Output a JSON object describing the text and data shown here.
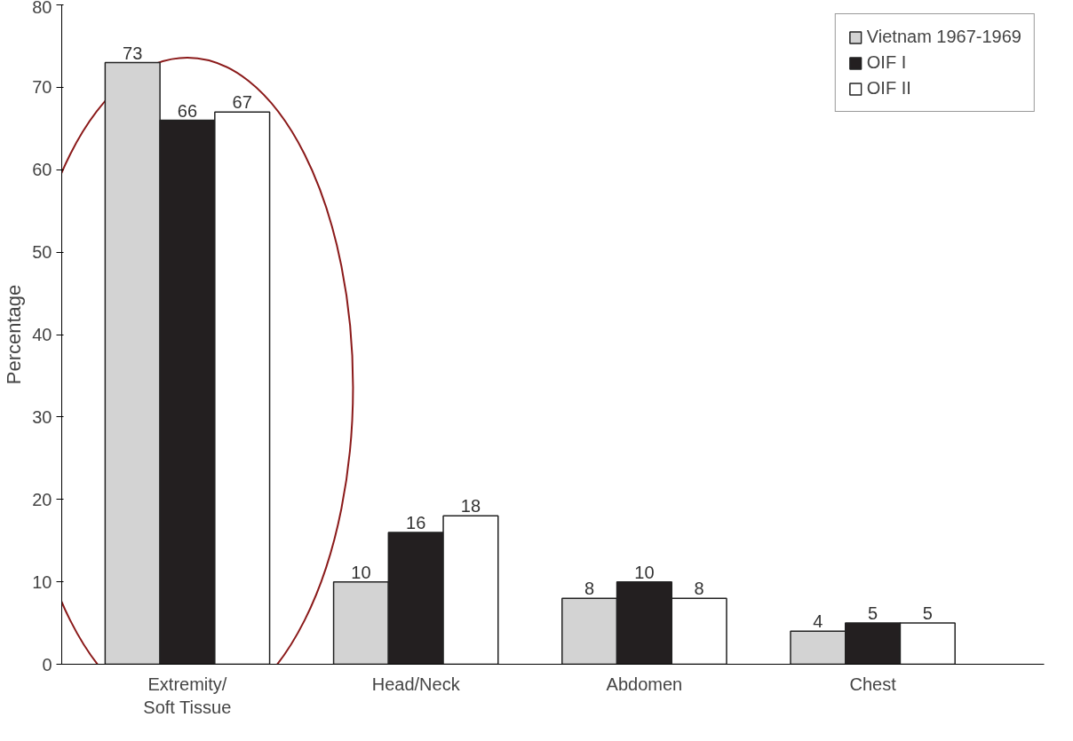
{
  "chart_data": {
    "type": "bar",
    "ylabel": "Percentage",
    "categories": [
      "Extremity/\nSoft Tissue",
      "Head/Neck",
      "Abdomen",
      "Chest"
    ],
    "series": [
      {
        "name": "Vietnam 1967-1969",
        "color": "#d3d3d3",
        "values": [
          73,
          10,
          8,
          4
        ]
      },
      {
        "name": "OIF I",
        "color": "#231f20",
        "values": [
          66,
          16,
          10,
          5
        ]
      },
      {
        "name": "OIF II",
        "color": "#ffffff",
        "values": [
          67,
          18,
          8,
          5
        ]
      }
    ],
    "ylim": [
      0,
      80
    ],
    "yticks": [
      0,
      10,
      20,
      30,
      40,
      50,
      60,
      70,
      80
    ],
    "data_labels": true,
    "grid": false,
    "legend": "top right"
  }
}
